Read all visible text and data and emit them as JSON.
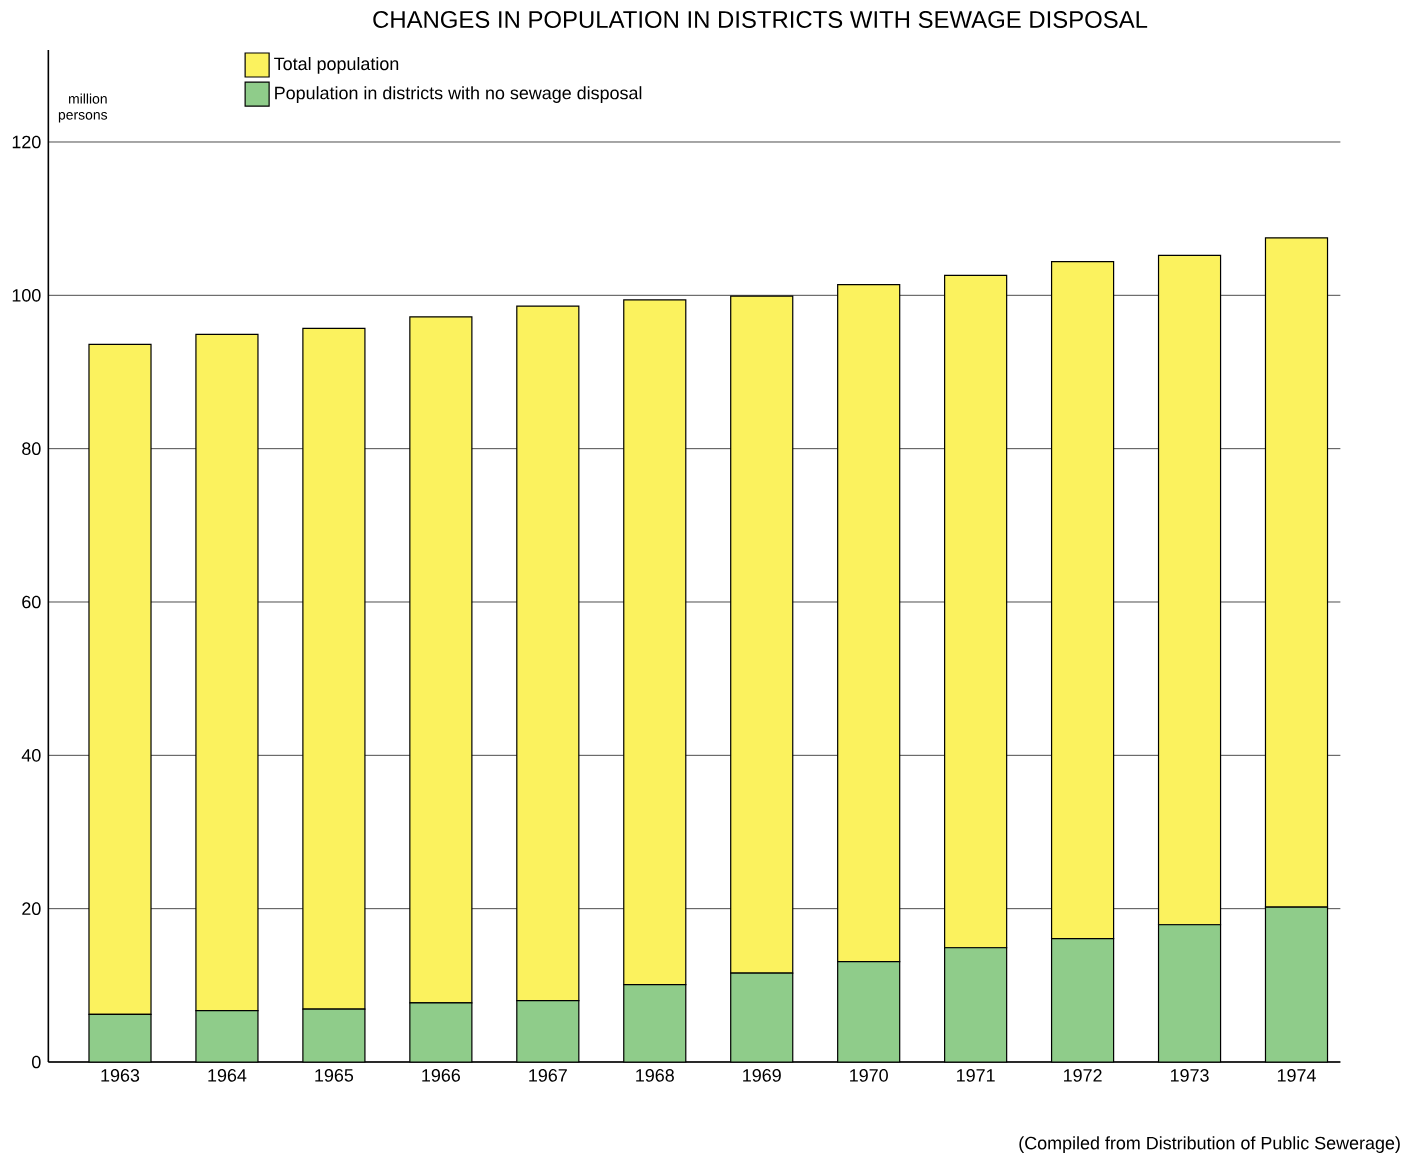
{
  "chart_data": {
    "type": "bar",
    "title": "CHANGES IN POPULATION IN DISTRICTS WITH SEWAGE DISPOSAL",
    "ylabel": "million persons",
    "categories": [
      "1963",
      "1964",
      "1965",
      "1966",
      "1967",
      "1968",
      "1969",
      "1970",
      "1971",
      "1972",
      "1973",
      "1974"
    ],
    "stacked": true,
    "series": [
      {
        "name": "Population in districts with no sewage disposal",
        "color": "#8fcc8a",
        "values": [
          6.2,
          6.7,
          6.9,
          7.7,
          8.0,
          10.1,
          11.6,
          13.1,
          14.9,
          16.1,
          17.9,
          20.2
        ]
      },
      {
        "name": "Total population",
        "color": "#fbf25e",
        "values": [
          87.4,
          88.2,
          88.8,
          89.5,
          90.6,
          89.3,
          88.3,
          88.3,
          87.7,
          88.3,
          87.3,
          87.3
        ]
      }
    ],
    "ylim": [
      0,
      132
    ],
    "yticks": [
      0,
      20,
      40,
      60,
      80,
      100,
      120
    ],
    "grid": "y",
    "legend": "top left",
    "annotations": [
      "(Compiled from Distribution of Public Sewerage)"
    ]
  }
}
